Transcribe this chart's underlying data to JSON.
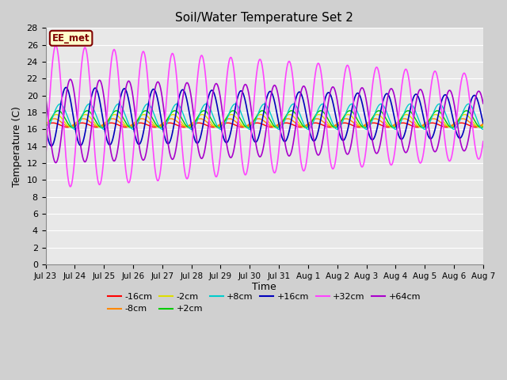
{
  "title": "Soil/Water Temperature Set 2",
  "xlabel": "Time",
  "ylabel": "Temperature (C)",
  "xlim": [
    0,
    15
  ],
  "ylim": [
    0,
    28
  ],
  "xtick_labels": [
    "Jul 23",
    "Jul 24",
    "Jul 25",
    "Jul 26",
    "Jul 27",
    "Jul 28",
    "Jul 29",
    "Jul 30",
    "Jul 31",
    "Aug 1",
    "Aug 2",
    "Aug 3",
    "Aug 4",
    "Aug 5",
    "Aug 6",
    "Aug 7"
  ],
  "fig_bg_color": "#d0d0d0",
  "plot_bg_color": "#e8e8e8",
  "grid_color": "white",
  "annotation_text": "EE_met",
  "annotation_bg": "#ffffcc",
  "annotation_border": "#800000",
  "series_colors": {
    "-16cm": "#ff0000",
    "-8cm": "#ff8800",
    "-2cm": "#dddd00",
    "+2cm": "#00cc00",
    "+8cm": "#00cccc",
    "+16cm": "#0000bb",
    "+32cm": "#ff44ff",
    "+64cm": "#aa00cc"
  },
  "series_params": {
    "-16cm": {
      "base": 16.5,
      "amp_start": 0.25,
      "amp_end": 0.25,
      "phase": 0.0
    },
    "-8cm": {
      "base": 16.8,
      "amp_start": 0.45,
      "amp_end": 0.45,
      "phase": 0.05
    },
    "-2cm": {
      "base": 17.0,
      "amp_start": 0.75,
      "amp_end": 0.75,
      "phase": 0.12
    },
    "+2cm": {
      "base": 17.2,
      "amp_start": 1.0,
      "amp_end": 1.0,
      "phase": 0.18
    },
    "+8cm": {
      "base": 17.5,
      "amp_start": 1.5,
      "amp_end": 1.5,
      "phase": 0.25
    },
    "+16cm": {
      "base": 17.5,
      "amp_start": 3.5,
      "amp_end": 2.5,
      "phase": 0.45
    },
    "+32cm": {
      "base": 17.5,
      "amp_start": 8.5,
      "amp_end": 5.0,
      "phase": 0.1
    },
    "+64cm": {
      "base": 17.0,
      "amp_start": 5.0,
      "amp_end": 3.5,
      "phase": 0.6
    }
  }
}
